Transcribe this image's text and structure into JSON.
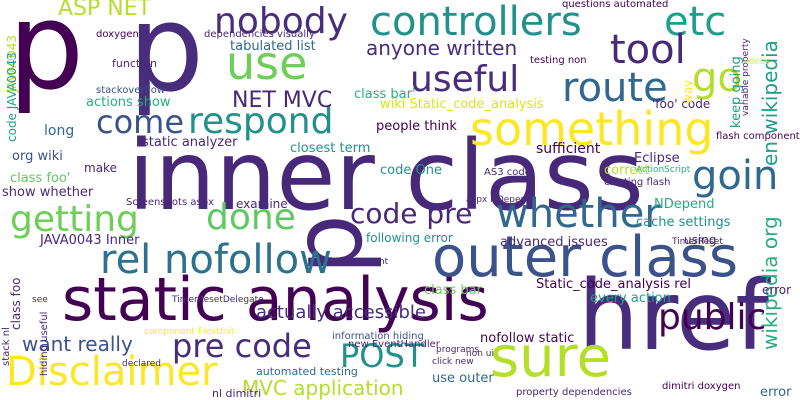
{
  "words": [
    {
      "text": "p",
      "c": "c1"
    },
    {
      "text": "p",
      "c": "c7"
    },
    {
      "text": "p",
      "c": "c12"
    },
    {
      "text": "inner class",
      "c": "c12"
    },
    {
      "text": "static analysis",
      "c": "c1"
    },
    {
      "text": "href",
      "c": "c7"
    },
    {
      "text": "outer class",
      "c": "c2"
    },
    {
      "text": "sure",
      "c": "c5"
    },
    {
      "text": "Disclaimer",
      "c": "c9"
    },
    {
      "text": "something",
      "c": "c9"
    },
    {
      "text": "controllers",
      "c": "c3"
    },
    {
      "text": "nobody",
      "c": "c7"
    },
    {
      "text": "etc",
      "c": "c13"
    },
    {
      "text": "use",
      "c": "c10"
    },
    {
      "text": "tool",
      "c": "c12"
    },
    {
      "text": "go",
      "c": "c5"
    },
    {
      "text": "route",
      "c": "c11"
    },
    {
      "text": "useful",
      "c": "c7"
    },
    {
      "text": "respond",
      "c": "c3"
    },
    {
      "text": "come",
      "c": "c2"
    },
    {
      "text": "goin",
      "c": "c11"
    },
    {
      "text": "getting",
      "c": "c10"
    },
    {
      "text": "done",
      "c": "c4"
    },
    {
      "text": "rel nofollow",
      "c": "c6"
    },
    {
      "text": "whether",
      "c": "c11"
    },
    {
      "text": "code pre",
      "c": "c12"
    },
    {
      "text": "pre code",
      "c": "c7"
    },
    {
      "text": "POST",
      "c": "c3"
    },
    {
      "text": "public",
      "c": "c1"
    },
    {
      "text": "anyone written",
      "c": "c7"
    },
    {
      "text": "NET MVC",
      "c": "c12"
    },
    {
      "text": "ASP NET",
      "c": "c5"
    },
    {
      "text": "MVC application",
      "c": "c5"
    },
    {
      "text": "want really",
      "c": "c2"
    },
    {
      "text": "actually accessible",
      "c": "c7"
    },
    {
      "text": "en wikipedia",
      "c": "c13"
    },
    {
      "text": "wikipedia org",
      "c": "c8"
    },
    {
      "text": "JAVA0043",
      "c": "c5"
    },
    {
      "text": "code JAVA0043",
      "c": "c13"
    },
    {
      "text": "tabulated list",
      "c": "c11"
    },
    {
      "text": "dependencies visually",
      "c": "c12"
    },
    {
      "text": "doxygen",
      "c": "c1"
    },
    {
      "text": "questions automated",
      "c": "c1"
    },
    {
      "text": "testing non",
      "c": "c1"
    },
    {
      "text": "class bar'",
      "c": "c8"
    },
    {
      "text": "wiki Static_code_analysis",
      "c": "c14"
    },
    {
      "text": "'foo' code",
      "c": "c12"
    },
    {
      "text": "keep going",
      "c": "c13"
    },
    {
      "text": "actions show",
      "c": "c8"
    },
    {
      "text": "stackoverflow",
      "c": "c2"
    },
    {
      "text": "function",
      "c": "c12"
    },
    {
      "text": "long",
      "c": "c11"
    },
    {
      "text": "org wiki",
      "c": "c2"
    },
    {
      "text": "static analyzer",
      "c": "c12"
    },
    {
      "text": "people think",
      "c": "c1"
    },
    {
      "text": "closest term",
      "c": "c3"
    },
    {
      "text": "code One",
      "c": "c3"
    },
    {
      "text": "AS3 code",
      "c": "c12"
    },
    {
      "text": "sufficient",
      "c": "c1"
    },
    {
      "text": "make",
      "c": "c12"
    },
    {
      "text": "class foo'",
      "c": "c4"
    },
    {
      "text": "show whether",
      "c": "c7"
    },
    {
      "text": "Screenshots aspx",
      "c": "c12"
    },
    {
      "text": "examine",
      "c": "c12"
    },
    {
      "text": "aspx NDepend",
      "c": "c7"
    },
    {
      "text": "Eclipse",
      "c": "c12"
    },
    {
      "text": "correct",
      "c": "c5"
    },
    {
      "text": "existing flash",
      "c": "c12"
    },
    {
      "text": "NDepend",
      "c": "c8"
    },
    {
      "text": "cache settings",
      "c": "c3"
    },
    {
      "text": "JAVA0043 Inner",
      "c": "c12"
    },
    {
      "text": "advanced issues",
      "c": "c12"
    },
    {
      "text": "following error",
      "c": "c3"
    },
    {
      "text": "using",
      "c": "c12"
    },
    {
      "text": "class bar",
      "c": "c10"
    },
    {
      "text": "Static_code_analysis rel",
      "c": "c1"
    },
    {
      "text": "every action",
      "c": "c13"
    },
    {
      "text": "nofollow static",
      "c": "c1"
    },
    {
      "text": "information hiding",
      "c": "c2"
    },
    {
      "text": "new EventHandler",
      "c": "c12"
    },
    {
      "text": "automated testing",
      "c": "c11"
    },
    {
      "text": "use outer",
      "c": "c11"
    },
    {
      "text": "property dependencies",
      "c": "c12"
    },
    {
      "text": "dimitri doxygen",
      "c": "c1"
    },
    {
      "text": "error",
      "c": "c11"
    },
    {
      "text": "error",
      "c": "c12"
    },
    {
      "text": "way",
      "c": "c9"
    },
    {
      "text": "flash component",
      "c": "c1"
    },
    {
      "text": "TimerResetDelegate",
      "c": "c12"
    },
    {
      "text": "class foo",
      "c": "c12"
    },
    {
      "text": "stack nl",
      "c": "c12"
    },
    {
      "text": "hiding useful",
      "c": "c12"
    },
    {
      "text": "nl dimitri",
      "c": "c12"
    },
    {
      "text": "programs",
      "c": "c12"
    },
    {
      "text": "click new",
      "c": "c12"
    },
    {
      "text": "non ui",
      "c": "c12"
    },
    {
      "text": "want",
      "c": "c12"
    },
    {
      "text": "see",
      "c": "c12"
    },
    {
      "text": "declared",
      "c": "c12"
    },
    {
      "text": "variable property",
      "c": "c12"
    },
    {
      "text": "ideas",
      "c": "c9"
    },
    {
      "text": "ActionScript",
      "c": "c8"
    },
    {
      "text": "component FlexUnit",
      "c": "c9"
    },
    {
      "text": "TimerReset",
      "c": "c12"
    }
  ]
}
